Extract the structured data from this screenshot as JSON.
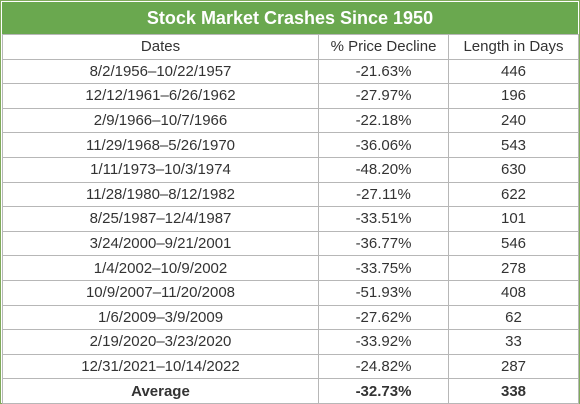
{
  "chart_data": {
    "type": "table",
    "title": "Stock Market Crashes Since 1950",
    "columns": [
      "Dates",
      "% Price Decline",
      "Length in Days"
    ],
    "rows": [
      [
        "8/2/1956–10/22/1957",
        "-21.63%",
        "446"
      ],
      [
        "12/12/1961–6/26/1962",
        "-27.97%",
        "196"
      ],
      [
        "2/9/1966–10/7/1966",
        "-22.18%",
        "240"
      ],
      [
        "11/29/1968–5/26/1970",
        "-36.06%",
        "543"
      ],
      [
        "1/11/1973–10/3/1974",
        "-48.20%",
        "630"
      ],
      [
        "11/28/1980–8/12/1982",
        "-27.11%",
        "622"
      ],
      [
        "8/25/1987–12/4/1987",
        "-33.51%",
        "101"
      ],
      [
        "3/24/2000–9/21/2001",
        "-36.77%",
        "546"
      ],
      [
        "1/4/2002–10/9/2002",
        "-33.75%",
        "278"
      ],
      [
        "10/9/2007–11/20/2008",
        "-51.93%",
        "408"
      ],
      [
        "1/6/2009–3/9/2009",
        "-27.62%",
        "62"
      ],
      [
        "2/19/2020–3/23/2020",
        "-33.92%",
        "33"
      ],
      [
        "12/31/2021–10/14/2022",
        "-24.82%",
        "287"
      ]
    ],
    "average": [
      "Average",
      "-32.73%",
      "338"
    ],
    "colors": {
      "header_bg": "#6aa84f",
      "header_text": "#ffffff",
      "border": "#b7b7b7"
    }
  }
}
